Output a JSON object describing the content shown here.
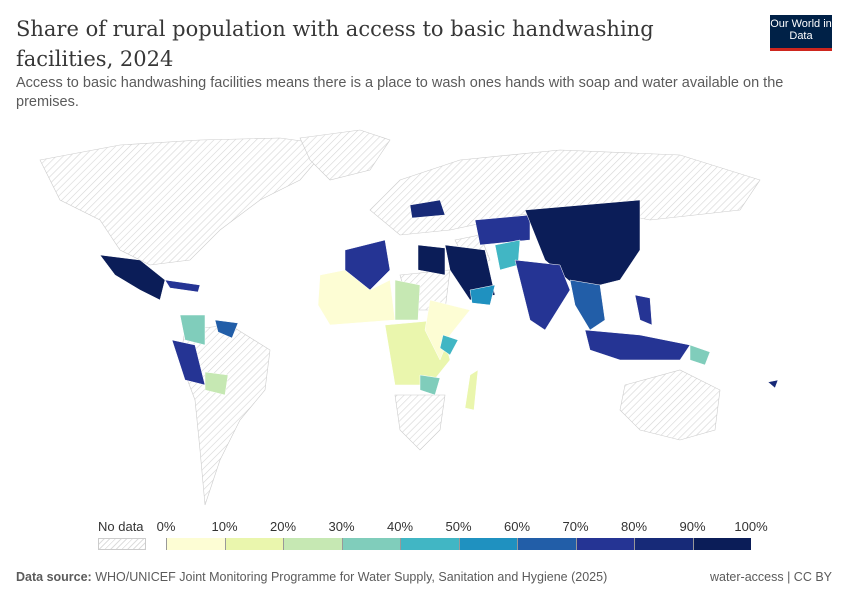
{
  "header": {
    "title": "Share of rural population with access to basic handwashing facilities, 2024",
    "subtitle": "Access to basic handwashing facilities means there is a place to wash ones hands with soap and water available on the premises.",
    "logo": "Our World in Data"
  },
  "chart_data": {
    "type": "choropleth",
    "year": 2024,
    "no_data_label": "No data",
    "tick_labels": [
      "0%",
      "10%",
      "20%",
      "30%",
      "40%",
      "50%",
      "60%",
      "70%",
      "80%",
      "90%",
      "100%"
    ],
    "bins": [
      0,
      10,
      20,
      30,
      40,
      50,
      60,
      70,
      80,
      90,
      100
    ],
    "colors": [
      "#fdfdd4",
      "#eaf6ad",
      "#c6e8b3",
      "#80cdbb",
      "#41b6c4",
      "#1f91c0",
      "#225ea8",
      "#253494",
      "#172a78",
      "#0b1d58"
    ],
    "no_data_color": "#e8e8e8"
  },
  "footer": {
    "source_label": "Data source:",
    "source": "WHO/UNICEF Joint Monitoring Programme for Water Supply, Sanitation and Hygiene (2025)",
    "license": "water-access | CC BY"
  }
}
